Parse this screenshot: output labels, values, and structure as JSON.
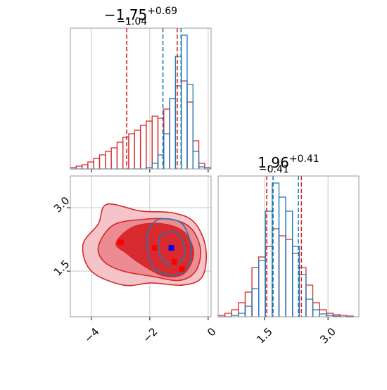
{
  "chart_data": [
    {
      "type": "histogram",
      "title": {
        "value": "−1.75",
        "upper": "+0.69",
        "lower": "−1.04"
      },
      "bins": [
        -4.72,
        -4.52,
        -4.32,
        -4.12,
        -3.92,
        -3.72,
        -3.52,
        -3.32,
        -3.12,
        -2.92,
        -2.72,
        -2.52,
        -2.32,
        -2.12,
        -1.92,
        -1.72,
        -1.52,
        -1.32,
        -1.12,
        -0.92,
        -0.72,
        -0.52,
        -0.32,
        -0.12,
        0.08
      ],
      "series": [
        {
          "color": "#d62728",
          "values": [
            2,
            4,
            6,
            10,
            15,
            20,
            25,
            30,
            38,
            45,
            50,
            55,
            62,
            68,
            75,
            72,
            85,
            100,
            118,
            125,
            95,
            40,
            8,
            2
          ]
        },
        {
          "color": "#1f77b4",
          "values": [
            0,
            0,
            0,
            0,
            0,
            0,
            0,
            0,
            0,
            0,
            0,
            0,
            0,
            2,
            8,
            20,
            50,
            100,
            160,
            190,
            120,
            25,
            3,
            0
          ]
        }
      ],
      "quantile_lines": [
        {
          "color": "#d62728",
          "x": -2.79
        },
        {
          "color": "#d62728",
          "x": -1.06
        },
        {
          "color": "#1f77b4",
          "x": -1.55
        },
        {
          "color": "#1f77b4",
          "x": -0.93
        }
      ],
      "xlim": [
        -4.72,
        0.1
      ],
      "xticks": [
        -4,
        -2,
        0
      ],
      "ylim": [
        0,
        200
      ],
      "grid": true
    },
    {
      "type": "contour",
      "contours": [
        {
          "fill": "#f5c4c8",
          "color": "#d62728",
          "x": [
            -4.29,
            -3.76,
            -3.47,
            -2.31,
            -1.23,
            -0.5,
            -0.09,
            -0.19,
            -0.86,
            -1.95,
            -2.91,
            -4.0
          ],
          "y": [
            2.12,
            2.62,
            3.08,
            2.92,
            2.88,
            2.67,
            2.08,
            1.38,
            1.17,
            1.22,
            1.17,
            1.5
          ]
        },
        {
          "fill": "#ec8c92",
          "color": "#d62728",
          "x": [
            -3.76,
            -3.27,
            -2.31,
            -1.23,
            -0.57,
            -0.26,
            -0.43,
            -0.99,
            -1.95,
            -2.91,
            -3.56
          ],
          "y": [
            2.08,
            2.58,
            2.72,
            2.72,
            2.5,
            2.0,
            1.5,
            1.28,
            1.38,
            1.5,
            1.72
          ]
        },
        {
          "fill": "#d92a30",
          "color": "#d62728",
          "x": [
            -3.15,
            -2.55,
            -1.59,
            -0.82,
            -0.5,
            -0.82,
            -1.47,
            -2.19,
            -2.79
          ],
          "y": [
            2.17,
            2.55,
            2.62,
            2.42,
            1.92,
            1.45,
            1.38,
            1.62,
            1.92
          ]
        },
        {
          "fill": "none",
          "color": "#1f77b4",
          "x": [
            -2.07,
            -1.71,
            -0.99,
            -0.67,
            -0.58,
            -0.82,
            -1.35,
            -1.88,
            -2.07
          ],
          "y": [
            2.42,
            2.72,
            2.67,
            2.33,
            1.83,
            1.5,
            1.42,
            1.58,
            2.0
          ]
        },
        {
          "fill": "none",
          "color": "#1f77b4",
          "x": [
            -1.64,
            -1.11,
            -0.82,
            -0.91,
            -1.4,
            -1.68
          ],
          "y": [
            2.33,
            2.42,
            2.08,
            1.75,
            1.67,
            1.95
          ]
        }
      ],
      "points": [
        {
          "color": "#ff0000",
          "x": [
            -2.99,
            -1.83,
            -1.16,
            -0.9
          ],
          "y": [
            2.18,
            2.05,
            1.72,
            1.55
          ]
        },
        {
          "color": "#0000ff",
          "x": [
            -1.26
          ],
          "y": [
            2.05
          ]
        }
      ],
      "xlim": [
        -4.72,
        0.1
      ],
      "ylim": [
        0.42,
        3.75
      ],
      "xticks": [
        {
          "value": -4,
          "label": "−4"
        },
        {
          "value": -2,
          "label": "−2"
        },
        0
      ],
      "yticks": [
        1.5,
        {
          "value": 3,
          "label": "3.0"
        }
      ],
      "grid": true
    },
    {
      "type": "histogram",
      "title": {
        "value": "1.96",
        "upper": "+0.41",
        "lower": "−0.41"
      },
      "bins": [
        0.4,
        0.56,
        0.72,
        0.88,
        1.04,
        1.2,
        1.36,
        1.52,
        1.68,
        1.84,
        2.0,
        2.16,
        2.32,
        2.48,
        2.64,
        2.8,
        2.96,
        3.12,
        3.28,
        3.44,
        3.6
      ],
      "series": [
        {
          "color": "#d62728",
          "values": [
            2,
            5,
            10,
            20,
            35,
            70,
            85,
            100,
            125,
            115,
            110,
            90,
            70,
            45,
            20,
            10,
            5,
            3,
            2,
            1
          ]
        },
        {
          "color": "#1f77b4",
          "values": [
            0,
            0,
            2,
            5,
            15,
            40,
            80,
            150,
            190,
            170,
            150,
            100,
            60,
            25,
            10,
            4,
            2,
            1,
            0,
            0
          ]
        }
      ],
      "quantile_lines": [
        {
          "color": "#d62728",
          "x": 1.55
        },
        {
          "color": "#d62728",
          "x": 2.37
        },
        {
          "color": "#1f77b4",
          "x": 1.7
        },
        {
          "color": "#1f77b4",
          "x": 2.3
        }
      ],
      "xlim": [
        0.4,
        3.73
      ],
      "xticks": [
        1.5,
        {
          "value": 3,
          "label": "3.0"
        }
      ],
      "ylim": [
        0,
        200
      ],
      "grid": true
    }
  ]
}
